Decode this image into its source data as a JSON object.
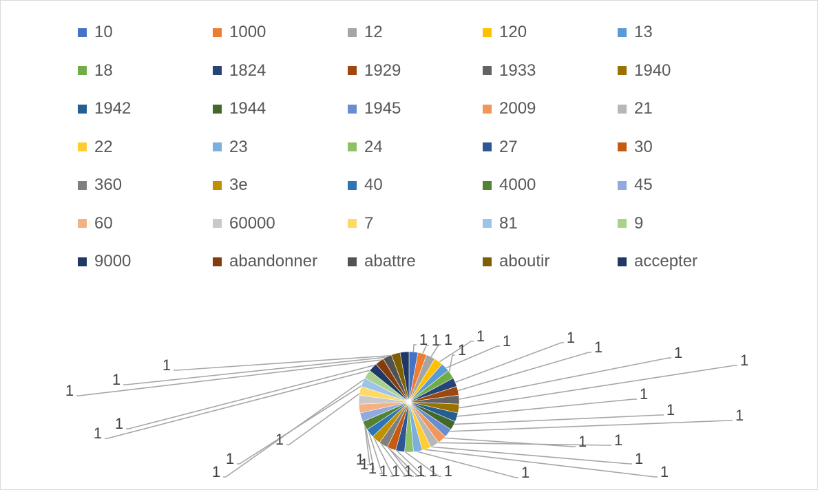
{
  "chart_data": {
    "type": "pie",
    "title": "",
    "legend_position": "top",
    "data_labels_shown": true,
    "series": [
      {
        "name": "",
        "categories": [
          "10",
          "1000",
          "12",
          "120",
          "13",
          "18",
          "1824",
          "1929",
          "1933",
          "1940",
          "1942",
          "1944",
          "1945",
          "2009",
          "21",
          "22",
          "23",
          "24",
          "27",
          "30",
          "360",
          "3e",
          "40",
          "4000",
          "45",
          "60",
          "60000",
          "7",
          "81",
          "9",
          "9000",
          "abandonner",
          "abattre",
          "aboutir",
          "accepter"
        ],
        "values": [
          1,
          1,
          1,
          1,
          1,
          1,
          1,
          1,
          1,
          1,
          1,
          1,
          1,
          1,
          1,
          1,
          1,
          1,
          1,
          1,
          1,
          1,
          1,
          1,
          1,
          1,
          1,
          1,
          1,
          1,
          1,
          1,
          1,
          1,
          1
        ],
        "data_labels": [
          "1",
          "1",
          "1",
          "1",
          "1",
          "1",
          "1",
          "1",
          "1",
          "1",
          "1",
          "1",
          "1",
          "1",
          "1",
          "1",
          "1",
          "1",
          "1",
          "1",
          "1",
          "1",
          "1",
          "1",
          "1",
          "1",
          "1",
          "1",
          "1",
          "1",
          "1",
          "1",
          "1",
          "1",
          "1"
        ]
      }
    ],
    "colors": [
      "#4472C4",
      "#ED7D31",
      "#A5A5A5",
      "#FFC000",
      "#5B9BD5",
      "#70AD47",
      "#264478",
      "#9E480E",
      "#636363",
      "#997300",
      "#255E91",
      "#43682B",
      "#698ED0",
      "#F1975A",
      "#B7B7B7",
      "#FFCD33",
      "#7CAFDD",
      "#8CC168",
      "#2F5597",
      "#C55A11",
      "#7F7F7F",
      "#BF9000",
      "#2E75B6",
      "#548235",
      "#8FAADC",
      "#F4B183",
      "#C9C9C9",
      "#FFD966",
      "#9DC3E6",
      "#A9D18E",
      "#1F3864",
      "#843C0C",
      "#525252",
      "#7F6000",
      "#203864"
    ]
  }
}
